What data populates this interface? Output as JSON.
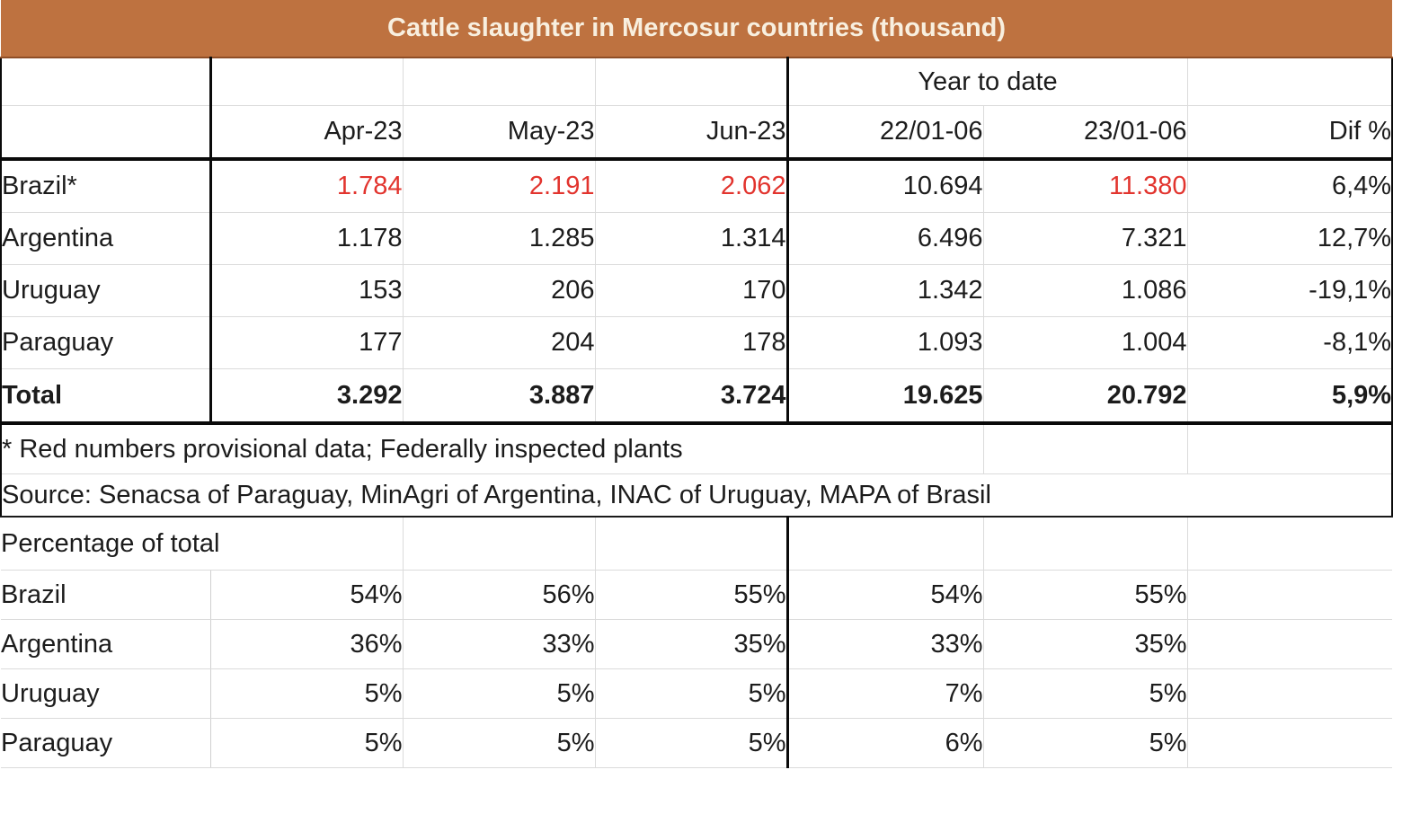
{
  "title": "Cattle slaughter in Mercosur countries (thousand)",
  "colors": {
    "title_bg": "#be7240",
    "title_text": "#f8efdf",
    "provisional_red": "#e2342e",
    "grid_light": "#dbdbdb",
    "border_black": "#0a0a0a"
  },
  "header": {
    "year_to_date": "Year to date",
    "columns": [
      "Apr-23",
      "May-23",
      "Jun-23",
      "22/01-06",
      "23/01-06",
      "Dif %"
    ]
  },
  "slaughter": {
    "rows": [
      {
        "label": "Brazil*",
        "values": [
          "1.784",
          "2.191",
          "2.062",
          "10.694",
          "11.380",
          "6,4%"
        ]
      },
      {
        "label": "Argentina",
        "values": [
          "1.178",
          "1.285",
          "1.314",
          "6.496",
          "7.321",
          "12,7%"
        ]
      },
      {
        "label": "Uruguay",
        "values": [
          "153",
          "206",
          "170",
          "1.342",
          "1.086",
          "-19,1%"
        ]
      },
      {
        "label": "Paraguay",
        "values": [
          "177",
          "204",
          "178",
          "1.093",
          "1.004",
          "-8,1%"
        ]
      }
    ],
    "total": {
      "label": "Total",
      "values": [
        "3.292",
        "3.887",
        "3.724",
        "19.625",
        "20.792",
        "5,9%"
      ]
    }
  },
  "notes": {
    "footnote": "* Red numbers provisional data; Federally inspected plants",
    "source": "Source: Senacsa of Paraguay, MinAgri of Argentina, INAC of Uruguay, MAPA of Brasil"
  },
  "percentage": {
    "section_label": "Percentage of total",
    "rows": [
      {
        "label": "Brazil",
        "values": [
          "54%",
          "56%",
          "55%",
          "54%",
          "55%"
        ]
      },
      {
        "label": "Argentina",
        "values": [
          "36%",
          "33%",
          "35%",
          "33%",
          "35%"
        ]
      },
      {
        "label": "Uruguay",
        "values": [
          "5%",
          "5%",
          "5%",
          "7%",
          "5%"
        ]
      },
      {
        "label": "Paraguay",
        "values": [
          "5%",
          "5%",
          "5%",
          "6%",
          "5%"
        ]
      }
    ]
  },
  "chart_data": {
    "type": "table",
    "title": "Cattle slaughter in Mercosur countries (thousand)",
    "columns": [
      "Apr-23",
      "May-23",
      "Jun-23",
      "22/01-06",
      "23/01-06",
      "Dif %"
    ],
    "rows": [
      {
        "country": "Brazil",
        "values": [
          1784,
          2191,
          2062,
          10694,
          11380
        ],
        "dif_pct": 6.4,
        "provisional": true
      },
      {
        "country": "Argentina",
        "values": [
          1178,
          1285,
          1314,
          6496,
          7321
        ],
        "dif_pct": 12.7,
        "provisional": false
      },
      {
        "country": "Uruguay",
        "values": [
          153,
          206,
          170,
          1342,
          1086
        ],
        "dif_pct": -19.1,
        "provisional": false
      },
      {
        "country": "Paraguay",
        "values": [
          177,
          204,
          178,
          1093,
          1004
        ],
        "dif_pct": -8.1,
        "provisional": false
      },
      {
        "country": "Total",
        "values": [
          3292,
          3887,
          3724,
          19625,
          20792
        ],
        "dif_pct": 5.9,
        "provisional": false
      }
    ],
    "percentage_of_total": [
      {
        "country": "Brazil",
        "values": [
          54,
          56,
          55,
          54,
          55
        ]
      },
      {
        "country": "Argentina",
        "values": [
          36,
          33,
          35,
          33,
          35
        ]
      },
      {
        "country": "Uruguay",
        "values": [
          5,
          5,
          5,
          7,
          5
        ]
      },
      {
        "country": "Paraguay",
        "values": [
          5,
          5,
          5,
          6,
          5
        ]
      }
    ],
    "notes": [
      "* Red numbers provisional data; Federally inspected plants",
      "Source: Senacsa of Paraguay, MinAgri of Argentina, INAC of Uruguay, MAPA of Brasil"
    ]
  }
}
